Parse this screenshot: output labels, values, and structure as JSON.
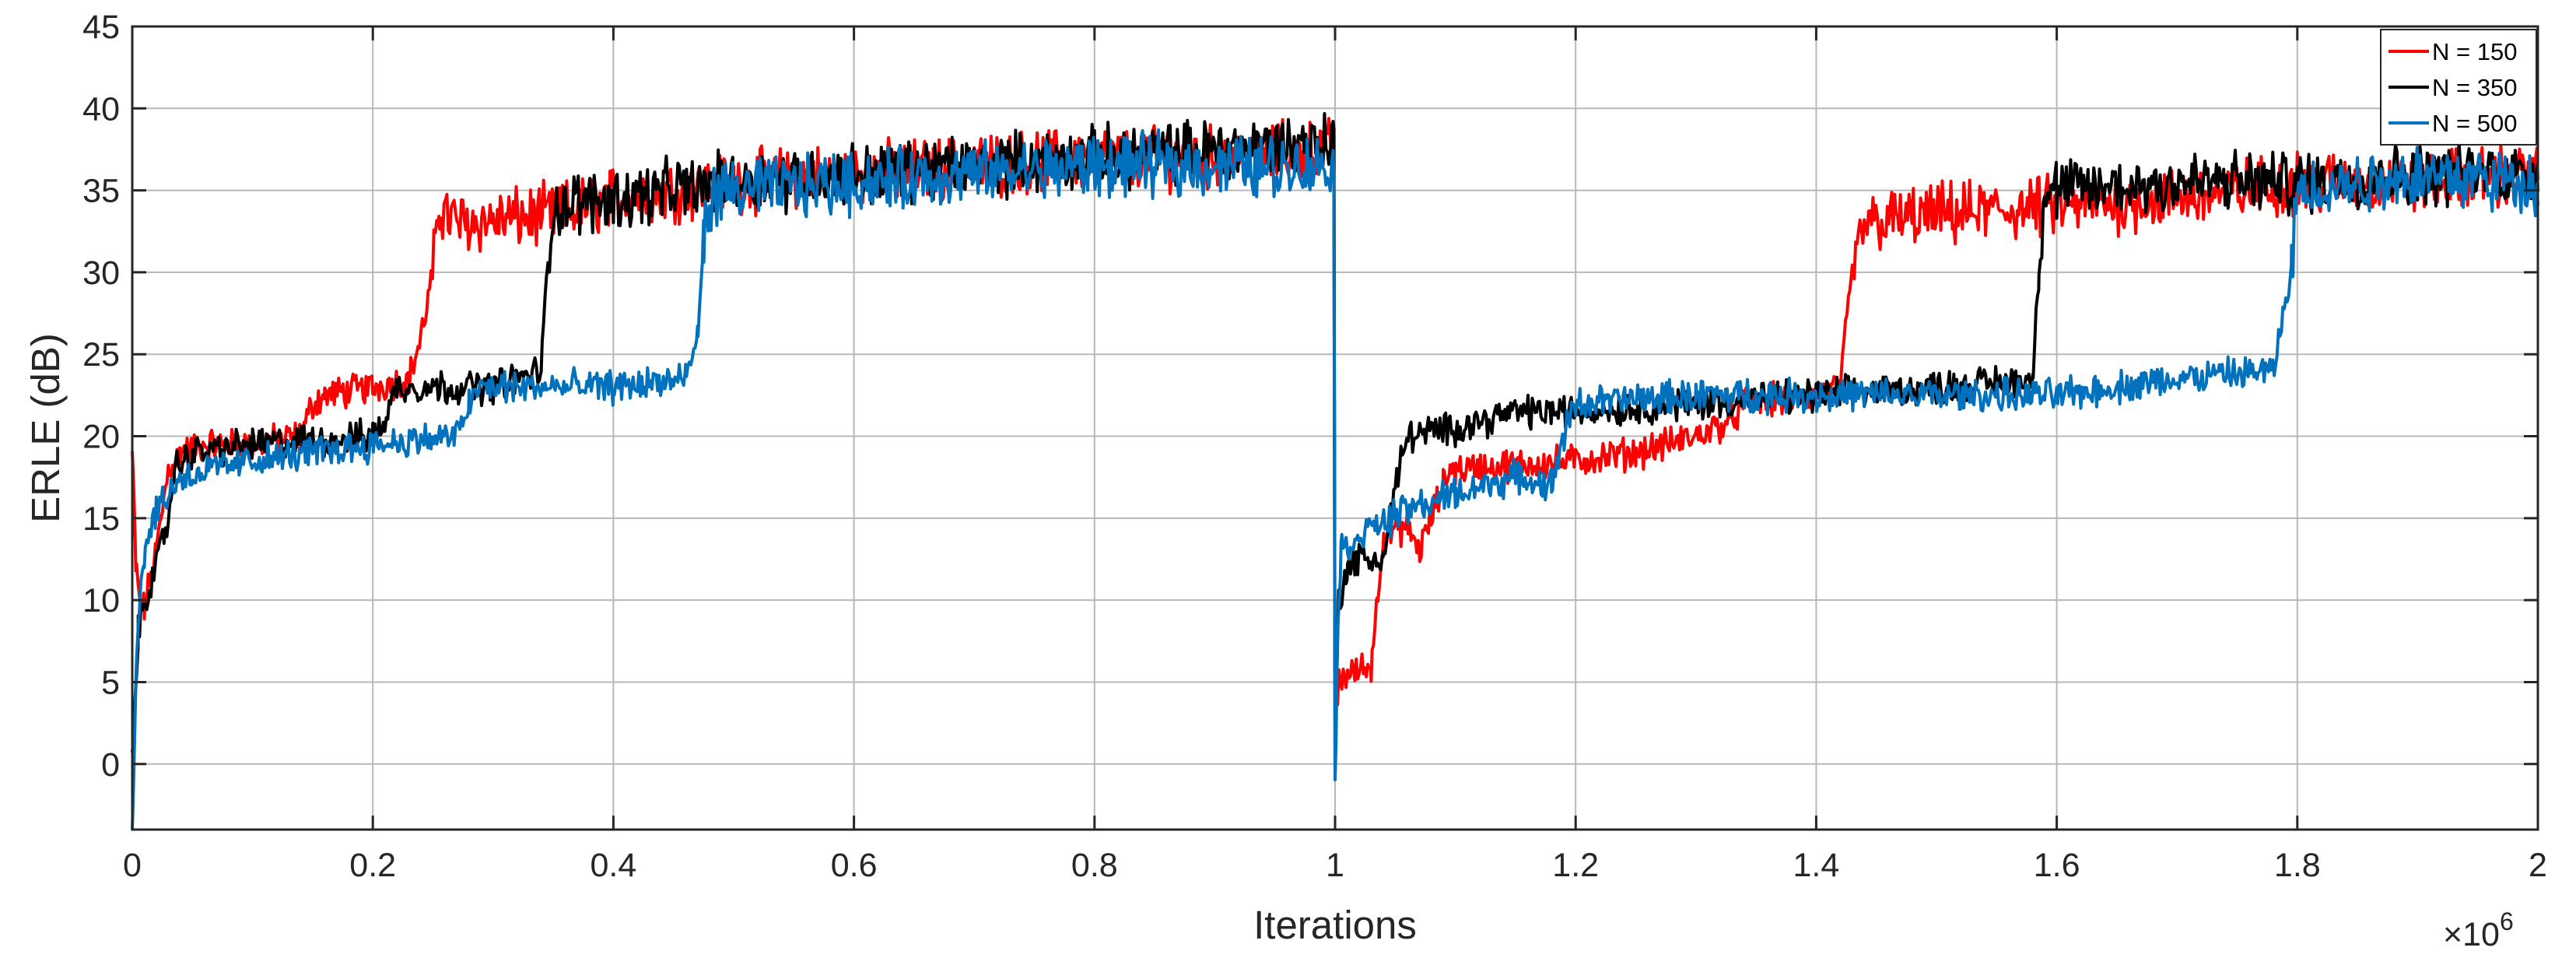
{
  "chart_data": {
    "type": "line",
    "xlabel": "Iterations",
    "ylabel": "ERLE (dB)",
    "x_multiplier_label": "×10",
    "x_multiplier_exponent": "6",
    "xlim": [
      0,
      2
    ],
    "ylim": [
      -4,
      45
    ],
    "x_unit_scale": 1000000,
    "xticks": [
      0,
      0.2,
      0.4,
      0.6,
      0.8,
      1,
      1.2,
      1.4,
      1.6,
      1.8,
      2
    ],
    "xtick_labels": [
      "0",
      "0.2",
      "0.4",
      "0.6",
      "0.8",
      "1",
      "1.2",
      "1.4",
      "1.6",
      "1.8",
      "2"
    ],
    "yticks": [
      0,
      5,
      10,
      15,
      20,
      25,
      30,
      35,
      40,
      45
    ],
    "ytick_labels": [
      "0",
      "5",
      "10",
      "15",
      "20",
      "25",
      "30",
      "35",
      "40",
      "45"
    ],
    "grid": true,
    "legend_position": "top-right",
    "series": [
      {
        "name": "N = 150",
        "color": "#ff0000",
        "x": [
          0,
          0.003,
          0.006,
          0.01,
          0.02,
          0.03,
          0.04,
          0.06,
          0.1,
          0.14,
          0.15,
          0.16,
          0.2,
          0.23,
          0.24,
          0.25,
          0.255,
          0.27,
          0.35,
          0.4,
          0.45,
          0.5,
          0.6,
          0.7,
          0.8,
          0.9,
          0.999,
          1.0,
          1.003,
          1.01,
          1.03,
          1.035,
          1.04,
          1.06,
          1.07,
          1.09,
          1.095,
          1.1,
          1.2,
          1.25,
          1.3,
          1.33,
          1.34,
          1.4,
          1.42,
          1.43,
          1.44,
          1.5,
          1.6,
          1.7,
          1.8,
          1.9,
          2.0
        ],
        "y": [
          19,
          12,
          10,
          9.5,
          13,
          18,
          19,
          19.5,
          19.5,
          20,
          22,
          22.5,
          23,
          23.5,
          26,
          30,
          34,
          33,
          33.5,
          34.5,
          35,
          35.5,
          36,
          36.5,
          37,
          37,
          37.5,
          2,
          5,
          5.5,
          6,
          10,
          14,
          14.5,
          13,
          17,
          18,
          18,
          18.5,
          19,
          20,
          21,
          22,
          22.5,
          23,
          30,
          33,
          33.5,
          34,
          34.5,
          35.5,
          35.5,
          36
        ]
      },
      {
        "name": "N = 350",
        "color": "#000000",
        "x": [
          0,
          0.005,
          0.01,
          0.02,
          0.03,
          0.035,
          0.05,
          0.1,
          0.2,
          0.21,
          0.22,
          0.3,
          0.34,
          0.345,
          0.35,
          0.4,
          0.5,
          0.6,
          0.7,
          0.8,
          0.9,
          0.999,
          1.0,
          1.003,
          1.01,
          1.02,
          1.04,
          1.05,
          1.06,
          1.1,
          1.15,
          1.2,
          1.3,
          1.4,
          1.5,
          1.58,
          1.585,
          1.59,
          1.6,
          1.7,
          1.8,
          1.9,
          2.0
        ],
        "y": [
          0,
          8,
          10,
          12,
          15,
          18,
          19,
          19.5,
          20,
          21,
          23,
          23,
          24,
          30,
          34,
          34.5,
          35.5,
          36,
          36.5,
          37,
          37.5,
          38,
          0,
          10,
          12,
          12.5,
          12.5,
          17,
          20,
          20.5,
          21.5,
          21.5,
          22,
          22.5,
          23,
          23.5,
          30,
          35,
          35,
          35.5,
          35.5,
          36,
          36
        ]
      },
      {
        "name": "N = 500",
        "color": "#0072bd",
        "x": [
          0,
          0.003,
          0.006,
          0.01,
          0.02,
          0.04,
          0.1,
          0.2,
          0.27,
          0.28,
          0.29,
          0.4,
          0.46,
          0.47,
          0.475,
          0.48,
          0.5,
          0.6,
          0.7,
          0.8,
          0.9,
          0.999,
          1.0,
          1.002,
          1.005,
          1.02,
          1.06,
          1.1,
          1.15,
          1.18,
          1.19,
          1.2,
          1.3,
          1.4,
          1.5,
          1.6,
          1.7,
          1.78,
          1.795,
          1.8,
          1.85,
          1.9,
          2.0
        ],
        "y": [
          -4,
          5,
          10,
          13,
          15.5,
          17.5,
          18.5,
          19.5,
          20,
          22,
          23,
          23,
          23.5,
          26,
          32,
          34.5,
          35,
          35.5,
          36,
          36.5,
          36.5,
          36.5,
          -1.5,
          8,
          13,
          14,
          15.5,
          16.5,
          17.5,
          17,
          20,
          22,
          22.5,
          22.5,
          22.5,
          22.5,
          23.5,
          24,
          30,
          35,
          35.5,
          36,
          35.5
        ]
      }
    ]
  }
}
